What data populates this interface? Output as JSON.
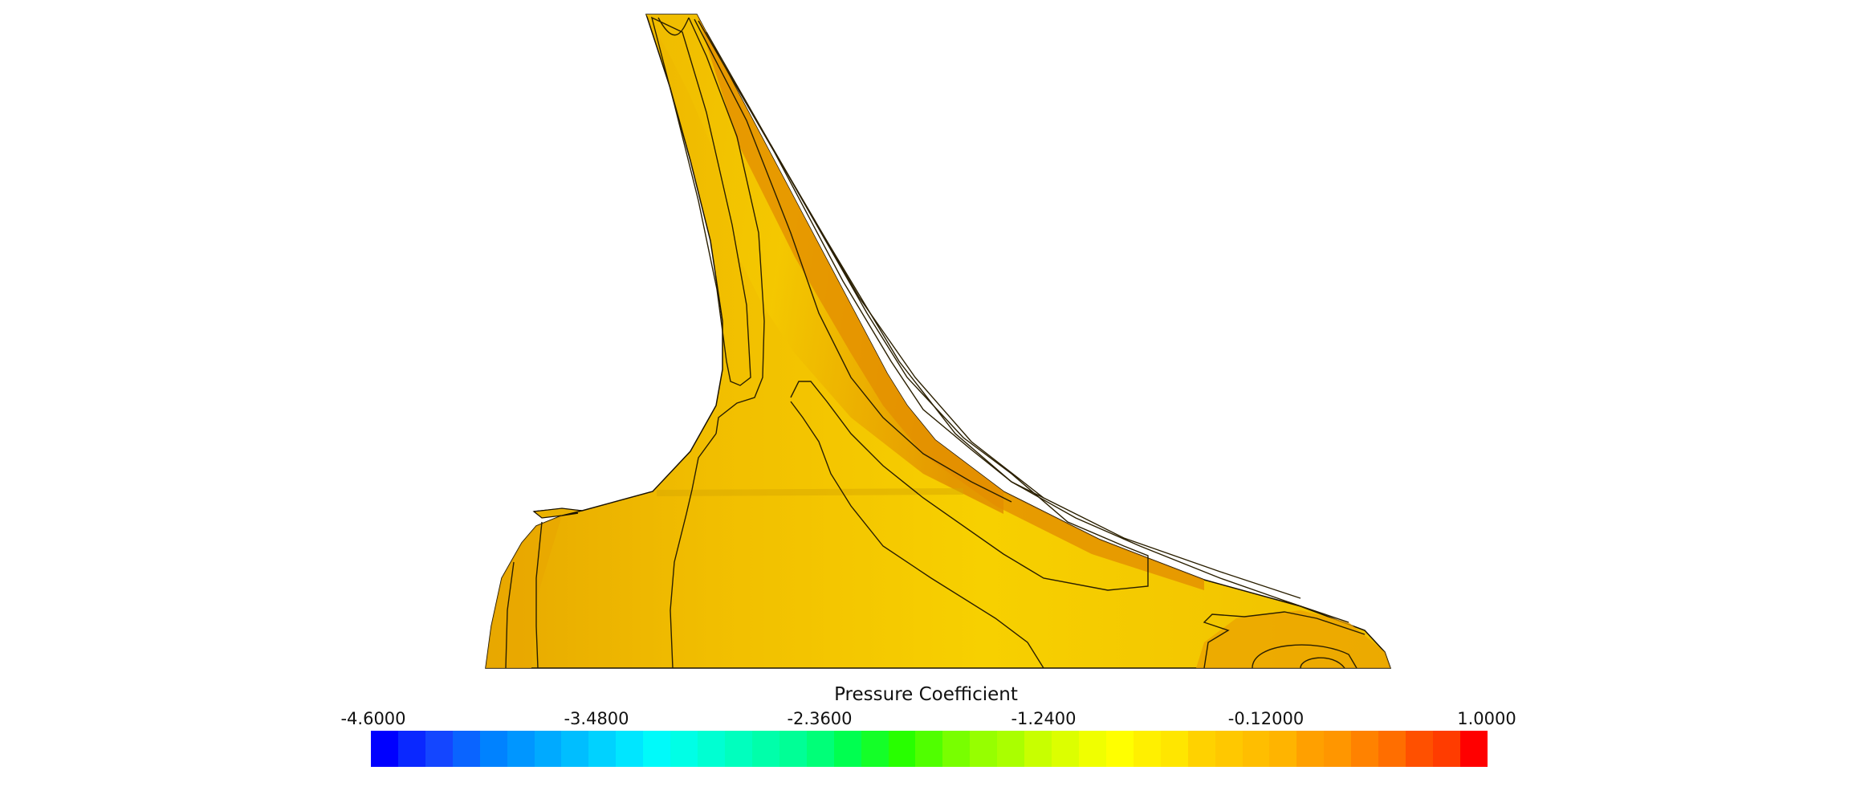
{
  "legend": {
    "title": "Pressure Coefficient",
    "min": -4.6,
    "max": 1.0,
    "ticks": [
      "-4.6000",
      "-3.4800",
      "-2.3600",
      "-1.2400",
      "-0.12000",
      "1.0000"
    ],
    "colors": [
      "#0000ff",
      "#0a28ff",
      "#1446ff",
      "#0a64ff",
      "#0082ff",
      "#0096ff",
      "#00aaff",
      "#00beff",
      "#00d2ff",
      "#00e6ff",
      "#00fafa",
      "#00ffe6",
      "#00ffd2",
      "#00ffbe",
      "#00ffaa",
      "#00ff96",
      "#00ff78",
      "#00ff50",
      "#14ff28",
      "#28ff00",
      "#50ff00",
      "#78ff00",
      "#96ff00",
      "#aaff00",
      "#c8ff00",
      "#dcff00",
      "#f0ff00",
      "#ffff00",
      "#fff000",
      "#ffe600",
      "#ffd200",
      "#ffc800",
      "#ffbe00",
      "#ffb400",
      "#ffa000",
      "#ff9600",
      "#ff8200",
      "#ff6e00",
      "#ff5000",
      "#ff3c00",
      "#ff0000"
    ]
  },
  "surface": {
    "base_color": "#f5cc00",
    "high_color": "#e39400",
    "edge_color": "#e9a400",
    "contour_color": "#2a1f00"
  }
}
